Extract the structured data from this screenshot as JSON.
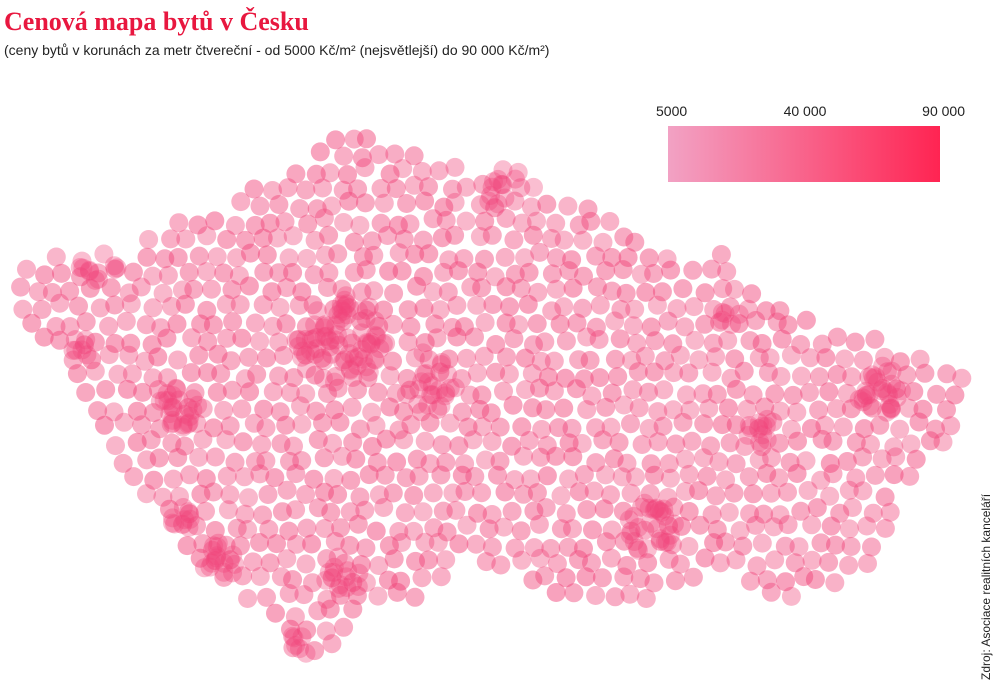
{
  "map": {
    "title": "Cenová mapa bytů v Česku",
    "subtitle": "(ceny bytů v korunách za metr čtvereční - od 5000 Kč/m² (nejsvětlejší) do 90 000 Kč/m²)",
    "legend": {
      "range": [
        5000,
        90000
      ],
      "ticks": [
        5000,
        {
          "value": 40000,
          "label": "40 000"
        },
        {
          "value": 90000,
          "label": "90 000"
        }
      ],
      "color_low": "#f2a2c4",
      "color_high": "#ff2452"
    },
    "source": "Zdroj: Asociace realitních kanceláří"
  }
}
